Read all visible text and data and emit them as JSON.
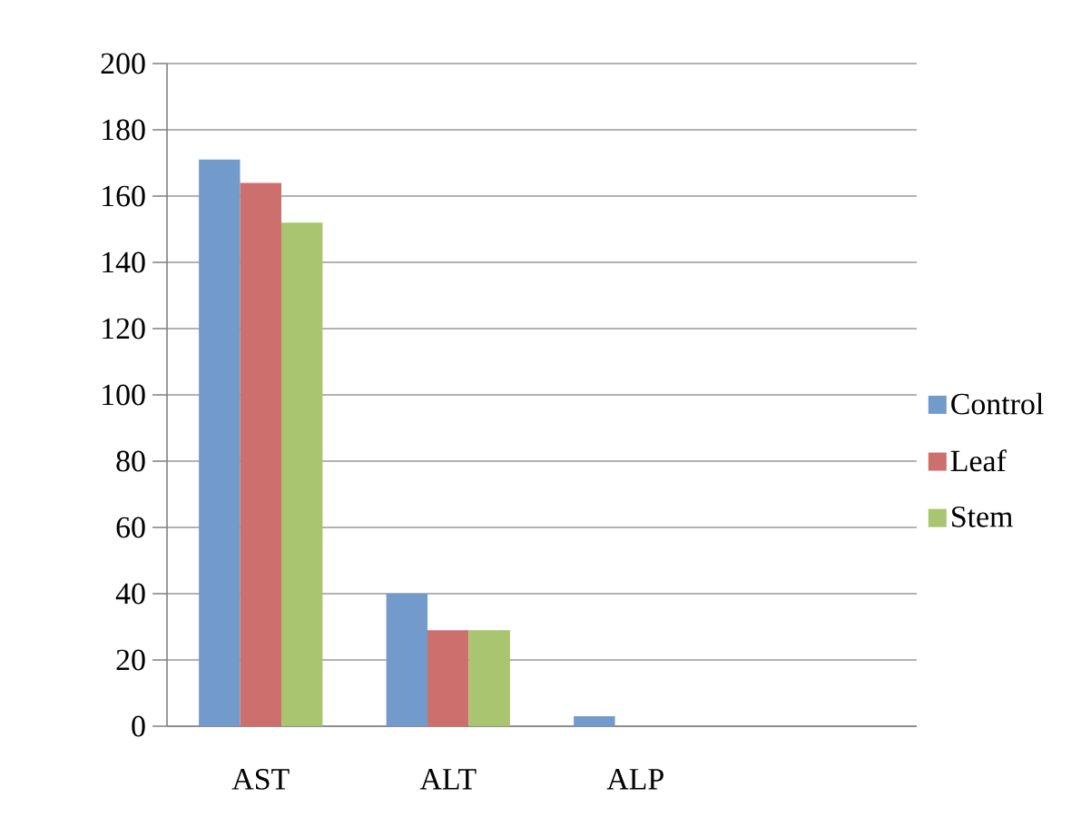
{
  "chart_data": {
    "type": "bar",
    "categories": [
      "AST",
      "ALT",
      "ALP",
      null
    ],
    "series": [
      {
        "name": "Control",
        "color": "#729acb",
        "values": [
          171,
          40,
          3,
          null
        ]
      },
      {
        "name": "Leaf",
        "color": "#cd6f6c",
        "values": [
          164,
          29,
          null,
          null
        ]
      },
      {
        "name": "Stem",
        "color": "#a9c56f",
        "values": [
          152,
          29,
          null,
          null
        ]
      }
    ],
    "ylim": [
      0,
      200
    ],
    "yticks": [
      0,
      20,
      40,
      60,
      80,
      100,
      120,
      140,
      160,
      180,
      200
    ],
    "grid": "y",
    "legend": "right"
  }
}
